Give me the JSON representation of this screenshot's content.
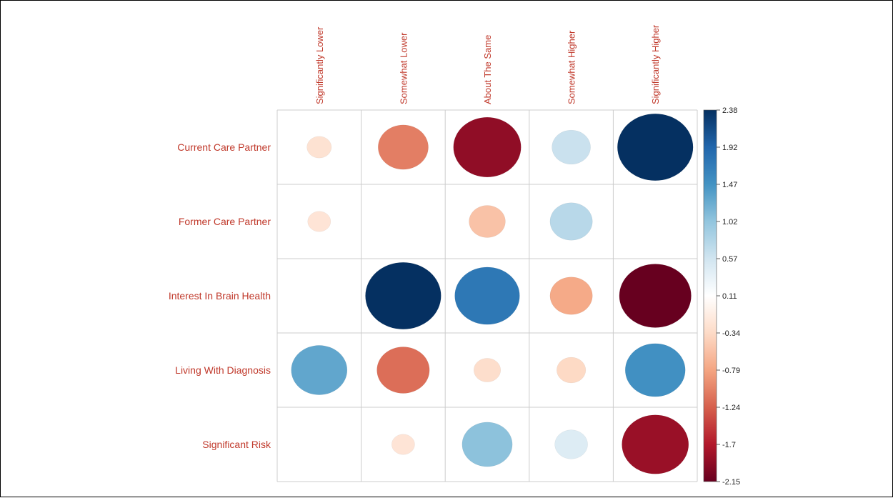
{
  "chart_data": {
    "type": "heatmap",
    "title": "",
    "rows": [
      "Current Care Partner",
      "Former Care Partner",
      "Interest In Brain Health",
      "Living With Diagnosis",
      "Significant Risk"
    ],
    "columns": [
      "Significantly  Lower",
      "Somewhat Lower",
      "About The Same",
      "Somewhat Higher",
      "Significantly Higher"
    ],
    "values": [
      [
        -0.25,
        -1.05,
        -1.9,
        0.62,
        2.38
      ],
      [
        -0.22,
        null,
        -0.55,
        0.75,
        null
      ],
      [
        null,
        2.38,
        1.75,
        -0.75,
        -2.15
      ],
      [
        1.3,
        -1.15,
        -0.3,
        -0.35,
        1.5
      ],
      [
        null,
        -0.22,
        1.05,
        0.45,
        -1.85
      ]
    ],
    "colorbar": {
      "ticks": [
        "2.38",
        "1.92",
        "1.47",
        "1.02",
        "0.57",
        "0.11",
        "-0.34",
        "-0.79",
        "-1.24",
        "-1.7",
        "-2.15"
      ],
      "range": [
        -2.15,
        2.38
      ]
    },
    "colors": {
      "label": "#c0392b",
      "grid": "#cccccc",
      "low": "#67001f",
      "high": "#053061"
    }
  }
}
